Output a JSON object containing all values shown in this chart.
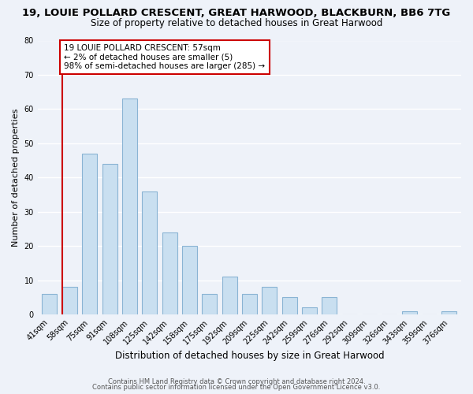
{
  "title": "19, LOUIE POLLARD CRESCENT, GREAT HARWOOD, BLACKBURN, BB6 7TG",
  "subtitle": "Size of property relative to detached houses in Great Harwood",
  "xlabel": "Distribution of detached houses by size in Great Harwood",
  "ylabel": "Number of detached properties",
  "bin_labels": [
    "41sqm",
    "58sqm",
    "75sqm",
    "91sqm",
    "108sqm",
    "125sqm",
    "142sqm",
    "158sqm",
    "175sqm",
    "192sqm",
    "209sqm",
    "225sqm",
    "242sqm",
    "259sqm",
    "276sqm",
    "292sqm",
    "309sqm",
    "326sqm",
    "343sqm",
    "359sqm",
    "376sqm"
  ],
  "bar_heights": [
    6,
    8,
    47,
    44,
    63,
    36,
    24,
    20,
    6,
    11,
    6,
    8,
    5,
    2,
    5,
    0,
    0,
    0,
    1,
    0,
    1
  ],
  "bar_color": "#c9dff0",
  "bar_edge_color": "#8ab4d4",
  "annotation_text": "19 LOUIE POLLARD CRESCENT: 57sqm\n← 2% of detached houses are smaller (5)\n98% of semi-detached houses are larger (285) →",
  "annotation_box_color": "#ffffff",
  "annotation_box_edge": "#cc0000",
  "vline_color": "#cc0000",
  "ylim": [
    0,
    80
  ],
  "yticks": [
    0,
    10,
    20,
    30,
    40,
    50,
    60,
    70,
    80
  ],
  "footer1": "Contains HM Land Registry data © Crown copyright and database right 2024.",
  "footer2": "Contains public sector information licensed under the Open Government Licence v3.0.",
  "background_color": "#eef2f9",
  "grid_color": "#ffffff",
  "title_fontsize": 9.5,
  "subtitle_fontsize": 8.5,
  "xlabel_fontsize": 8.5,
  "ylabel_fontsize": 8,
  "tick_fontsize": 7,
  "annotation_fontsize": 7.5,
  "footer_fontsize": 6
}
